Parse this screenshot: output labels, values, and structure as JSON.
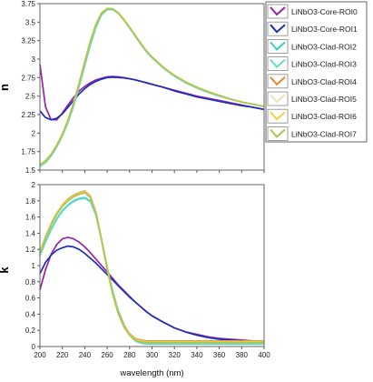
{
  "chart_data": [
    {
      "type": "line",
      "ylabel": "n",
      "xlim": [
        200,
        400
      ],
      "ylim": [
        1.5,
        3.75
      ],
      "yticks": [
        "1.5",
        "1.75",
        "2",
        "2.25",
        "2.5",
        "2.75",
        "3",
        "3.25",
        "3.5",
        "3.75"
      ],
      "ytick_values": [
        1.5,
        1.75,
        2,
        2.25,
        2.5,
        2.75,
        3,
        3.25,
        3.5,
        3.75
      ],
      "x": [
        200,
        205,
        210,
        215,
        220,
        225,
        230,
        235,
        240,
        245,
        250,
        255,
        260,
        265,
        270,
        275,
        280,
        285,
        290,
        295,
        300,
        310,
        320,
        330,
        340,
        350,
        360,
        370,
        380,
        390,
        400
      ],
      "series": [
        {
          "name": "LiNbO3-Core-ROI0",
          "color": "#9b22a6",
          "values": [
            2.93,
            2.35,
            2.18,
            2.18,
            2.27,
            2.38,
            2.48,
            2.57,
            2.63,
            2.68,
            2.72,
            2.74,
            2.76,
            2.765,
            2.76,
            2.75,
            2.735,
            2.72,
            2.7,
            2.68,
            2.66,
            2.62,
            2.58,
            2.54,
            2.5,
            2.47,
            2.44,
            2.41,
            2.38,
            2.35,
            2.32
          ]
        },
        {
          "name": "LiNbO3-Core-ROI1",
          "color": "#1d2fb8",
          "values": [
            2.3,
            2.21,
            2.18,
            2.2,
            2.26,
            2.35,
            2.44,
            2.53,
            2.6,
            2.66,
            2.7,
            2.73,
            2.75,
            2.755,
            2.75,
            2.745,
            2.735,
            2.72,
            2.7,
            2.68,
            2.66,
            2.62,
            2.57,
            2.53,
            2.49,
            2.46,
            2.43,
            2.4,
            2.37,
            2.35,
            2.32
          ]
        },
        {
          "name": "LiNbO3-Clad-ROI2",
          "color": "#3ccfc8",
          "values": [
            1.56,
            1.61,
            1.7,
            1.82,
            1.97,
            2.15,
            2.37,
            2.64,
            2.92,
            3.2,
            3.44,
            3.6,
            3.67,
            3.67,
            3.62,
            3.53,
            3.42,
            3.31,
            3.2,
            3.1,
            3.02,
            2.88,
            2.77,
            2.68,
            2.61,
            2.55,
            2.5,
            2.46,
            2.42,
            2.39,
            2.36
          ]
        },
        {
          "name": "LiNbO3-Clad-ROI3",
          "color": "#6ad8c8",
          "values": [
            1.55,
            1.6,
            1.69,
            1.81,
            1.96,
            2.14,
            2.36,
            2.63,
            2.91,
            3.19,
            3.43,
            3.6,
            3.67,
            3.67,
            3.62,
            3.53,
            3.42,
            3.31,
            3.2,
            3.1,
            3.02,
            2.88,
            2.77,
            2.68,
            2.61,
            2.55,
            2.5,
            2.46,
            2.42,
            2.39,
            2.36
          ]
        },
        {
          "name": "LiNbO3-Clad-ROI4",
          "color": "#e88a35",
          "values": [
            1.58,
            1.63,
            1.72,
            1.84,
            1.99,
            2.18,
            2.41,
            2.68,
            2.97,
            3.25,
            3.48,
            3.63,
            3.69,
            3.68,
            3.63,
            3.54,
            3.43,
            3.32,
            3.21,
            3.11,
            3.03,
            2.89,
            2.78,
            2.69,
            2.62,
            2.56,
            2.51,
            2.46,
            2.42,
            2.39,
            2.36
          ]
        },
        {
          "name": "LiNbO3-Clad-ROI5",
          "color": "#f0e0b8",
          "values": [
            1.58,
            1.63,
            1.72,
            1.84,
            1.99,
            2.18,
            2.41,
            2.68,
            2.97,
            3.25,
            3.48,
            3.63,
            3.69,
            3.68,
            3.63,
            3.54,
            3.43,
            3.32,
            3.21,
            3.11,
            3.03,
            2.89,
            2.78,
            2.69,
            2.62,
            2.56,
            2.51,
            2.46,
            2.42,
            2.39,
            2.36
          ]
        },
        {
          "name": "LiNbO3-Clad-ROI6",
          "color": "#f0d040",
          "values": [
            1.57,
            1.62,
            1.71,
            1.83,
            1.98,
            2.17,
            2.4,
            2.67,
            2.96,
            3.24,
            3.47,
            3.62,
            3.68,
            3.68,
            3.62,
            3.53,
            3.43,
            3.32,
            3.21,
            3.11,
            3.03,
            2.89,
            2.78,
            2.69,
            2.62,
            2.56,
            2.51,
            2.46,
            2.42,
            2.39,
            2.36
          ]
        },
        {
          "name": "LiNbO3-Clad-ROI7",
          "color": "#a8c850",
          "values": [
            1.57,
            1.62,
            1.71,
            1.83,
            1.98,
            2.17,
            2.4,
            2.67,
            2.96,
            3.24,
            3.47,
            3.62,
            3.68,
            3.68,
            3.62,
            3.53,
            3.43,
            3.32,
            3.21,
            3.11,
            3.03,
            2.89,
            2.78,
            2.69,
            2.62,
            2.56,
            2.51,
            2.46,
            2.42,
            2.39,
            2.36
          ]
        }
      ]
    },
    {
      "type": "line",
      "ylabel": "k",
      "xlabel": "wavelength (nm)",
      "xlim": [
        200,
        400
      ],
      "ylim": [
        0,
        2
      ],
      "xticks": [
        "200",
        "220",
        "240",
        "260",
        "280",
        "300",
        "320",
        "340",
        "360",
        "380",
        "400"
      ],
      "xtick_values": [
        200,
        220,
        240,
        260,
        280,
        300,
        320,
        340,
        360,
        380,
        400
      ],
      "yticks": [
        "0",
        "0.2",
        "0.4",
        "0.6",
        "0.8",
        "1",
        "1.2",
        "1.4",
        "1.6",
        "1.8",
        "2"
      ],
      "ytick_values": [
        0,
        0.2,
        0.4,
        0.6,
        0.8,
        1,
        1.2,
        1.4,
        1.6,
        1.8,
        2
      ],
      "x": [
        200,
        205,
        210,
        215,
        220,
        225,
        230,
        235,
        240,
        245,
        250,
        255,
        260,
        265,
        270,
        275,
        280,
        285,
        290,
        295,
        300,
        310,
        320,
        330,
        340,
        350,
        360,
        370,
        380,
        390,
        400
      ],
      "series": [
        {
          "name": "LiNbO3-Core-ROI0",
          "color": "#9b22a6",
          "values": [
            0.7,
            0.95,
            1.14,
            1.26,
            1.33,
            1.35,
            1.33,
            1.29,
            1.23,
            1.16,
            1.08,
            1.0,
            0.92,
            0.84,
            0.76,
            0.69,
            0.62,
            0.55,
            0.49,
            0.43,
            0.38,
            0.3,
            0.23,
            0.18,
            0.15,
            0.12,
            0.1,
            0.09,
            0.08,
            0.07,
            0.06
          ]
        },
        {
          "name": "LiNbO3-Core-ROI1",
          "color": "#1d2fb8",
          "values": [
            0.9,
            1.04,
            1.13,
            1.19,
            1.22,
            1.24,
            1.23,
            1.2,
            1.15,
            1.09,
            1.03,
            0.96,
            0.89,
            0.82,
            0.75,
            0.68,
            0.61,
            0.55,
            0.49,
            0.43,
            0.38,
            0.3,
            0.23,
            0.18,
            0.14,
            0.11,
            0.09,
            0.08,
            0.07,
            0.06,
            0.05
          ]
        },
        {
          "name": "LiNbO3-Clad-ROI2",
          "color": "#3ccfc8",
          "values": [
            1.13,
            1.3,
            1.45,
            1.58,
            1.68,
            1.75,
            1.8,
            1.83,
            1.84,
            1.8,
            1.63,
            1.32,
            0.98,
            0.68,
            0.44,
            0.27,
            0.15,
            0.08,
            0.05,
            0.04,
            0.03,
            0.03,
            0.03,
            0.03,
            0.03,
            0.03,
            0.03,
            0.03,
            0.03,
            0.03,
            0.03
          ]
        },
        {
          "name": "LiNbO3-Clad-ROI3",
          "color": "#6ad8c8",
          "values": [
            1.12,
            1.29,
            1.44,
            1.57,
            1.67,
            1.74,
            1.79,
            1.82,
            1.83,
            1.79,
            1.62,
            1.31,
            0.97,
            0.67,
            0.43,
            0.26,
            0.14,
            0.07,
            0.04,
            0.03,
            0.03,
            0.03,
            0.03,
            0.03,
            0.03,
            0.03,
            0.03,
            0.03,
            0.03,
            0.03,
            0.03
          ]
        },
        {
          "name": "LiNbO3-Clad-ROI4",
          "color": "#e88a35",
          "values": [
            1.17,
            1.36,
            1.52,
            1.65,
            1.75,
            1.82,
            1.87,
            1.9,
            1.92,
            1.86,
            1.66,
            1.33,
            0.97,
            0.66,
            0.42,
            0.26,
            0.16,
            0.1,
            0.08,
            0.07,
            0.07,
            0.07,
            0.07,
            0.07,
            0.07,
            0.07,
            0.07,
            0.07,
            0.07,
            0.07,
            0.07
          ]
        },
        {
          "name": "LiNbO3-Clad-ROI5",
          "color": "#f0e0b8",
          "values": [
            1.16,
            1.35,
            1.51,
            1.64,
            1.74,
            1.81,
            1.86,
            1.89,
            1.91,
            1.85,
            1.65,
            1.32,
            0.96,
            0.65,
            0.41,
            0.25,
            0.15,
            0.09,
            0.07,
            0.06,
            0.06,
            0.06,
            0.06,
            0.06,
            0.06,
            0.06,
            0.06,
            0.06,
            0.06,
            0.06,
            0.06
          ]
        },
        {
          "name": "LiNbO3-Clad-ROI6",
          "color": "#f0d040",
          "values": [
            1.16,
            1.35,
            1.51,
            1.64,
            1.74,
            1.81,
            1.86,
            1.89,
            1.91,
            1.85,
            1.65,
            1.32,
            0.96,
            0.65,
            0.41,
            0.25,
            0.15,
            0.09,
            0.07,
            0.06,
            0.06,
            0.06,
            0.06,
            0.06,
            0.06,
            0.06,
            0.06,
            0.06,
            0.06,
            0.06,
            0.06
          ]
        },
        {
          "name": "LiNbO3-Clad-ROI7",
          "color": "#a8c850",
          "values": [
            1.15,
            1.34,
            1.5,
            1.63,
            1.73,
            1.8,
            1.85,
            1.88,
            1.9,
            1.84,
            1.64,
            1.31,
            0.95,
            0.64,
            0.4,
            0.24,
            0.14,
            0.08,
            0.06,
            0.05,
            0.05,
            0.05,
            0.05,
            0.05,
            0.05,
            0.05,
            0.05,
            0.05,
            0.05,
            0.05,
            0.05
          ]
        }
      ]
    }
  ],
  "legend": {
    "placement": "right",
    "items": [
      {
        "label": "LiNbO3-Core-ROI0",
        "color": "#9b22a6"
      },
      {
        "label": "LiNbO3-Core-ROI1",
        "color": "#1d2fb8"
      },
      {
        "label": "LiNbO3-Clad-ROI2",
        "color": "#3ccfc8"
      },
      {
        "label": "LiNbO3-Clad-ROI3",
        "color": "#6ad8c8"
      },
      {
        "label": "LiNbO3-Clad-ROI4",
        "color": "#e88a35"
      },
      {
        "label": "LiNbO3-Clad-ROI5",
        "color": "#f0e0b8"
      },
      {
        "label": "LiNbO3-Clad-ROI6",
        "color": "#f0d040"
      },
      {
        "label": "LiNbO3-Clad-ROI7",
        "color": "#a8c850"
      }
    ]
  }
}
